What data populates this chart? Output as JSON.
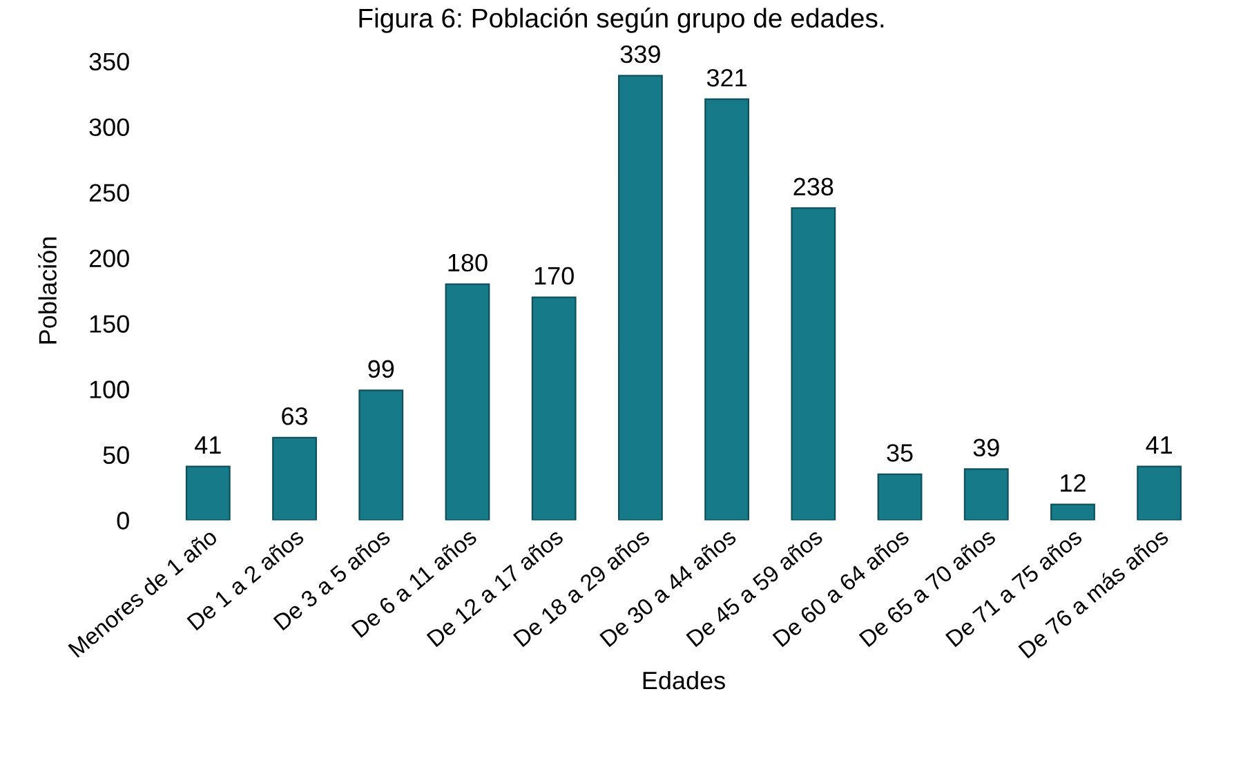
{
  "chart_data": {
    "type": "bar",
    "title": "Figura 6: Población según grupo de edades.",
    "xlabel": "Edades",
    "ylabel": "Población",
    "categories": [
      "Menores de 1 año",
      "De 1 a 2 años",
      "De 3 a 5 años",
      "De 6 a 11 años",
      "De 12 a 17 años",
      "De 18 a 29 años",
      "De 30 a 44 años",
      "De 45 a 59 años",
      "De 60 a 64 años",
      "De 65 a 70 años",
      "De 71 a 75 años",
      "De 76 a más años"
    ],
    "values": [
      41,
      63,
      99,
      180,
      170,
      339,
      321,
      238,
      35,
      39,
      12,
      41
    ],
    "color": "#177a88",
    "data_labels": true,
    "ylim": [
      0,
      350
    ],
    "yticks": [
      0,
      50,
      100,
      150,
      200,
      250,
      300,
      350
    ],
    "grid": false,
    "legend": false
  }
}
